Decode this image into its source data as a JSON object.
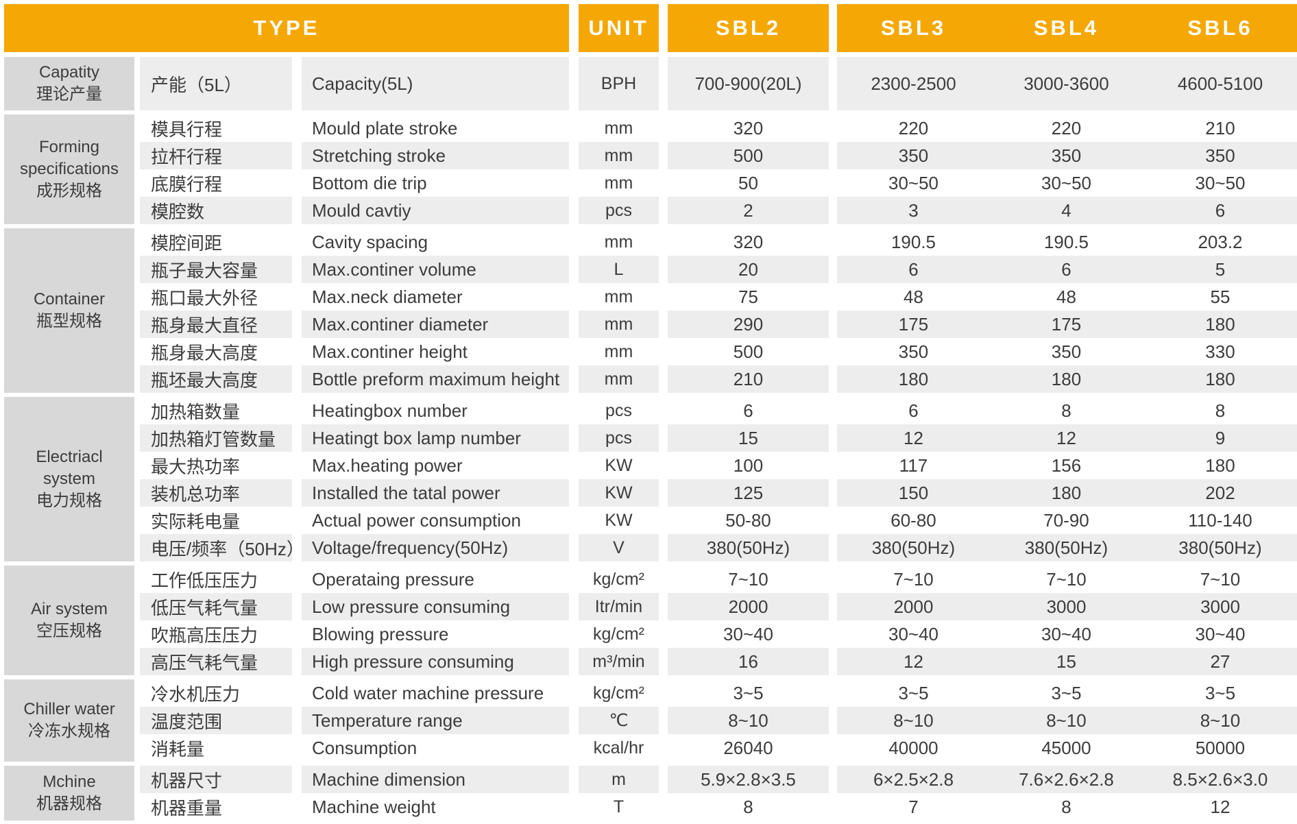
{
  "header": {
    "type_label": "TYPE",
    "unit_label": "UNIT",
    "models": [
      "SBL2",
      "SBL3",
      "SBL4",
      "SBL6"
    ]
  },
  "groups": [
    {
      "name_lines": [
        "Capatity",
        "理论产量"
      ],
      "rows": [
        {
          "cn": "产能（5L）",
          "en": "Capacity(5L)",
          "unit": "BPH",
          "values": [
            "700-900(20L)",
            "2300-2500",
            "3000-3600",
            "4600-5100"
          ]
        }
      ]
    },
    {
      "name_lines": [
        "Forming",
        "specifications",
        "成形规格"
      ],
      "rows": [
        {
          "cn": "模具行程",
          "en": "Mould plate stroke",
          "unit": "mm",
          "values": [
            "320",
            "220",
            "220",
            "210"
          ]
        },
        {
          "cn": "拉杆行程",
          "en": "Stretching stroke",
          "unit": "mm",
          "values": [
            "500",
            "350",
            "350",
            "350"
          ]
        },
        {
          "cn": "底膜行程",
          "en": "Bottom die trip",
          "unit": "mm",
          "values": [
            "50",
            "30~50",
            "30~50",
            "30~50"
          ]
        },
        {
          "cn": "模腔数",
          "en": "Mould cavtiy",
          "unit": "pcs",
          "values": [
            "2",
            "3",
            "4",
            "6"
          ]
        }
      ]
    },
    {
      "name_lines": [
        "Container",
        "瓶型规格"
      ],
      "rows": [
        {
          "cn": "模腔间距",
          "en": "Cavity spacing",
          "unit": "mm",
          "values": [
            "320",
            "190.5",
            "190.5",
            "203.2"
          ]
        },
        {
          "cn": "瓶子最大容量",
          "en": "Max.continer volume",
          "unit": "L",
          "values": [
            "20",
            "6",
            "6",
            "5"
          ]
        },
        {
          "cn": "瓶口最大外径",
          "en": "Max.neck diameter",
          "unit": "mm",
          "values": [
            "75",
            "48",
            "48",
            "55"
          ]
        },
        {
          "cn": "瓶身最大直径",
          "en": "Max.continer diameter",
          "unit": "mm",
          "values": [
            "290",
            "175",
            "175",
            "180"
          ]
        },
        {
          "cn": "瓶身最大高度",
          "en": "Max.continer height",
          "unit": "mm",
          "values": [
            "500",
            "350",
            "350",
            "330"
          ]
        },
        {
          "cn": "瓶坯最大高度",
          "en": "Bottle preform maximum height",
          "unit": "mm",
          "values": [
            "210",
            "180",
            "180",
            "180"
          ]
        }
      ]
    },
    {
      "name_lines": [
        "Electriacl",
        "system",
        "电力规格"
      ],
      "rows": [
        {
          "cn": "加热箱数量",
          "en": "Heatingbox number",
          "unit": "pcs",
          "values": [
            "6",
            "6",
            "8",
            "8"
          ]
        },
        {
          "cn": "加热箱灯管数量",
          "en": "Heatingt box lamp number",
          "unit": "pcs",
          "values": [
            "15",
            "12",
            "12",
            "9"
          ]
        },
        {
          "cn": "最大热功率",
          "en": "Max.heating power",
          "unit": "KW",
          "values": [
            "100",
            "117",
            "156",
            "180"
          ]
        },
        {
          "cn": "装机总功率",
          "en": "Installed the tatal power",
          "unit": "KW",
          "values": [
            "125",
            "150",
            "180",
            "202"
          ]
        },
        {
          "cn": "实际耗电量",
          "en": "Actual power consumption",
          "unit": "KW",
          "values": [
            "50-80",
            "60-80",
            "70-90",
            "110-140"
          ]
        },
        {
          "cn": "电压/频率（50Hz）",
          "en": "Voltage/frequency(50Hz)",
          "unit": "V",
          "values": [
            "380(50Hz)",
            "380(50Hz)",
            "380(50Hz)",
            "380(50Hz)"
          ]
        }
      ]
    },
    {
      "name_lines": [
        "Air system",
        "空压规格"
      ],
      "rows": [
        {
          "cn": "工作低压压力",
          "en": "Operataing pressure",
          "unit": "kg/cm²",
          "values": [
            "7~10",
            "7~10",
            "7~10",
            "7~10"
          ]
        },
        {
          "cn": "低压气耗气量",
          "en": "Low pressure consuming",
          "unit": "Itr/min",
          "values": [
            "2000",
            "2000",
            "3000",
            "3000"
          ]
        },
        {
          "cn": "吹瓶高压压力",
          "en": "Blowing pressure",
          "unit": "kg/cm²",
          "values": [
            "30~40",
            "30~40",
            "30~40",
            "30~40"
          ]
        },
        {
          "cn": "高压气耗气量",
          "en": "High pressure consuming",
          "unit": "m³/min",
          "values": [
            "16",
            "12",
            "15",
            "27"
          ]
        }
      ]
    },
    {
      "name_lines": [
        "Chiller water",
        "冷冻水规格"
      ],
      "rows": [
        {
          "cn": "冷水机压力",
          "en": "Cold water machine pressure",
          "unit": "kg/cm²",
          "values": [
            "3~5",
            "3~5",
            "3~5",
            "3~5"
          ]
        },
        {
          "cn": "温度范围",
          "en": "Temperature range",
          "unit": "℃",
          "values": [
            "8~10",
            "8~10",
            "8~10",
            "8~10"
          ]
        },
        {
          "cn": "消耗量",
          "en": "Consumption",
          "unit": "kcal/hr",
          "values": [
            "26040",
            "40000",
            "45000",
            "50000"
          ]
        }
      ]
    },
    {
      "name_lines": [
        "Mchine",
        "机器规格"
      ],
      "rows": [
        {
          "cn": "机器尺寸",
          "en": "Machine dimension",
          "unit": "m",
          "values": [
            "5.9×2.8×3.5",
            "6×2.5×2.8",
            "7.6×2.6×2.8",
            "8.5×2.6×3.0"
          ]
        },
        {
          "cn": "机器重量",
          "en": "Machine weight",
          "unit": "T",
          "values": [
            "8",
            "7",
            "8",
            "12"
          ]
        }
      ]
    }
  ],
  "colors": {
    "header_bg": "#F5A704",
    "header_text": "#FFFFFF",
    "category_bg": "#D8D8D8",
    "row_alt_bg": "#EDEDED",
    "row_bg": "#FFFFFF",
    "text": "#3C3C3C"
  }
}
